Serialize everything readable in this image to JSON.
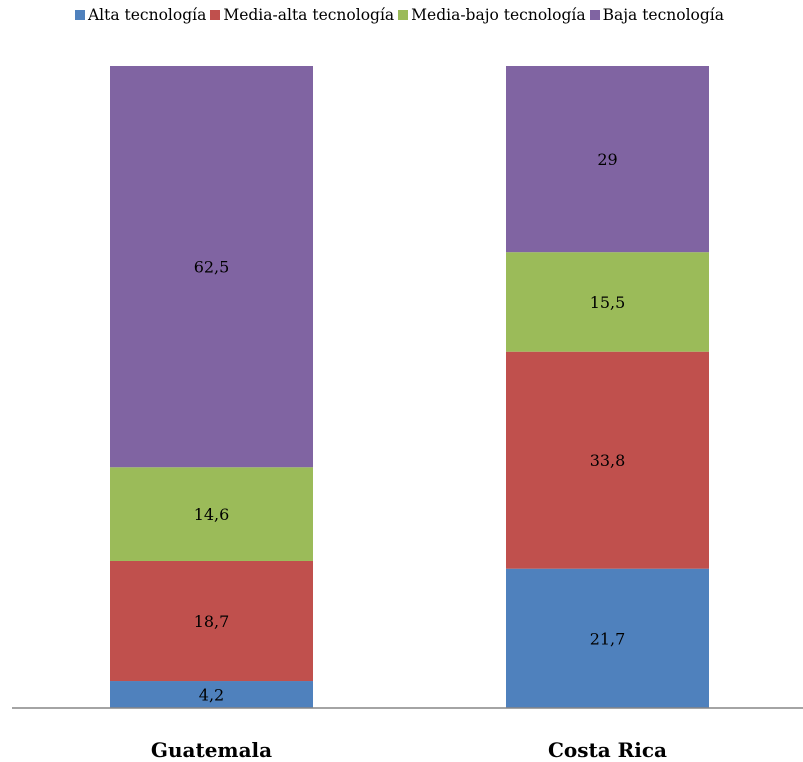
{
  "chart_data": {
    "type": "bar",
    "stacked": true,
    "categories": [
      "Guatemala",
      "Costa Rica"
    ],
    "series": [
      {
        "name": "Alta tecnología",
        "color": "#4f81bd",
        "values": [
          4.2,
          21.7
        ],
        "labels": [
          "4,2",
          "21,7"
        ]
      },
      {
        "name": "Media-alta tecnología",
        "color": "#c0504d",
        "values": [
          18.7,
          33.8
        ],
        "labels": [
          "18,7",
          "33,8"
        ]
      },
      {
        "name": "Media-bajo tecnología",
        "color": "#9bbb59",
        "values": [
          14.6,
          15.5
        ],
        "labels": [
          "14,6",
          "15,5"
        ]
      },
      {
        "name": "Baja tecnología",
        "color": "#8064a2",
        "values": [
          62.5,
          29
        ],
        "labels": [
          "62,5",
          "29"
        ]
      }
    ],
    "ylim": [
      0,
      100
    ],
    "legend_position": "top",
    "grid": false
  }
}
